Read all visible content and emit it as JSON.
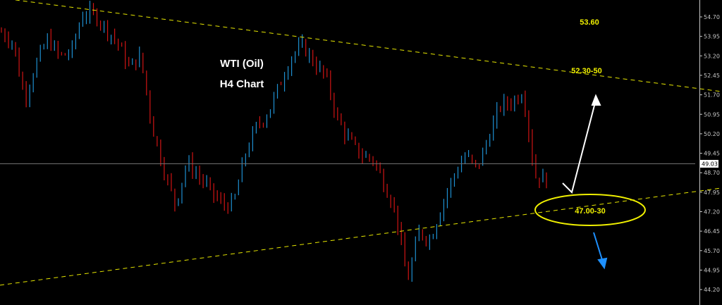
{
  "chart_data": {
    "type": "candlestick",
    "title": "WTI (Oil)",
    "subtitle": "H4 Chart",
    "ylim": [
      43.95,
      55.35
    ],
    "y_ticks": [
      "54.70",
      "53.95",
      "53.20",
      "52.45",
      "51.70",
      "50.95",
      "50.20",
      "49.45",
      "48.70",
      "47.95",
      "47.20",
      "46.45",
      "45.70",
      "44.95",
      "44.20"
    ],
    "current_price": "49.03",
    "grid": false,
    "price_path": [
      54.13,
      53.72,
      51.55,
      52.91,
      53.86,
      53.18,
      53.32,
      54.81,
      54.81,
      54.27,
      53.72,
      52.77,
      53.18,
      50.47,
      48.84,
      47.48,
      49.11,
      48.57,
      48.03,
      47.48,
      47.48,
      49.38,
      50.47,
      51.01,
      52.1,
      53.18,
      53.59,
      52.91,
      52.37,
      50.74,
      49.93,
      49.38,
      49.25,
      48.3,
      47.21,
      44.5,
      46.4,
      46.13,
      47.48,
      48.57,
      49.38,
      48.84,
      50.06,
      51.28,
      51.42,
      51.83,
      48.57,
      48.43
    ],
    "trendlines": [
      {
        "kind": "resistance",
        "start_price": 55.43,
        "end_price": 51.96,
        "color": "#e6e600"
      },
      {
        "kind": "support",
        "start_price": 44.37,
        "end_price": 47.97,
        "color": "#e6e600"
      }
    ],
    "annotations": [
      {
        "label": "53.60"
      },
      {
        "label": "52.30-50"
      },
      {
        "label": "47.00-30"
      }
    ],
    "colors": {
      "up": "#1e8fd0",
      "down": "#d01414",
      "background": "#000000",
      "trendline": "#e6e600",
      "arrow_up": "#ffffff",
      "arrow_down": "#1e90ff"
    }
  }
}
